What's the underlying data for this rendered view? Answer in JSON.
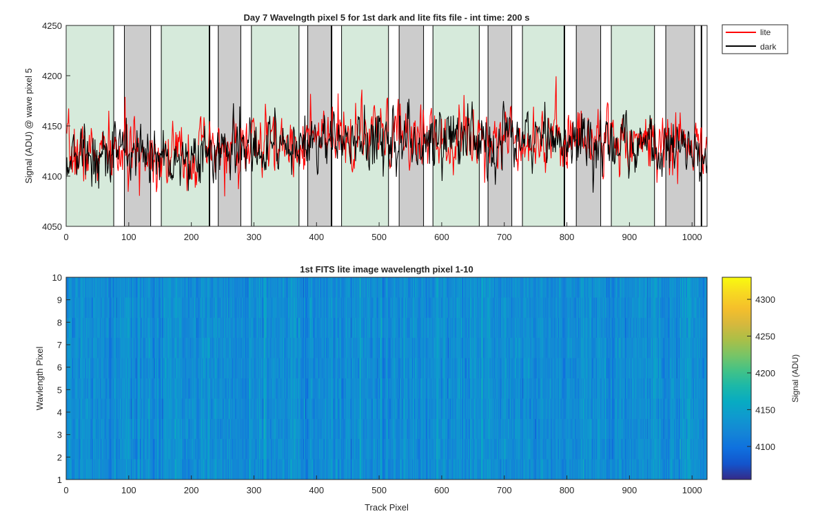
{
  "chart_data": [
    {
      "type": "line",
      "title": "Day 7 Wavelngth pixel 5 for 1st dark and lite fits file - int time: 200 s",
      "xlabel": "",
      "ylabel": "Signal (ADU) @ wave pixel 5",
      "xlim": [
        0,
        1024
      ],
      "ylim": [
        4050,
        4250
      ],
      "xticks": [
        0,
        100,
        200,
        300,
        400,
        500,
        600,
        700,
        800,
        900,
        1000
      ],
      "yticks": [
        4050,
        4100,
        4150,
        4200,
        4250
      ],
      "legend": {
        "position": "outside-top-right",
        "entries": [
          "lite",
          "dark"
        ]
      },
      "series": [
        {
          "name": "lite",
          "color": "#ff0000",
          "baseline": [
            [
              0,
              4122
            ],
            [
              100,
              4124
            ],
            [
              200,
              4121
            ],
            [
              300,
              4130
            ],
            [
              400,
              4135
            ],
            [
              500,
              4139
            ],
            [
              600,
              4141
            ],
            [
              700,
              4140
            ],
            [
              800,
              4139
            ],
            [
              900,
              4137
            ],
            [
              1000,
              4130
            ],
            [
              1024,
              4120
            ]
          ],
          "noise_std": 15,
          "n_points": 1024,
          "seed": 7
        },
        {
          "name": "dark",
          "color": "#000000",
          "baseline": [
            [
              0,
              4120
            ],
            [
              100,
              4122
            ],
            [
              200,
              4119
            ],
            [
              300,
              4128
            ],
            [
              400,
              4133
            ],
            [
              500,
              4136
            ],
            [
              600,
              4139
            ],
            [
              700,
              4137
            ],
            [
              800,
              4136
            ],
            [
              900,
              4134
            ],
            [
              1000,
              4128
            ],
            [
              1024,
              4118
            ]
          ],
          "noise_std": 14,
          "n_points": 1024,
          "seed": 13
        }
      ],
      "regions": [
        {
          "x": [
            0,
            76
          ],
          "color": "#d6eadb"
        },
        {
          "x": [
            93,
            135
          ],
          "color": "#cccccc"
        },
        {
          "x": [
            152,
            229
          ],
          "color": "#d6eadb"
        },
        {
          "x": [
            243,
            279
          ],
          "color": "#cccccc"
        },
        {
          "x": [
            296,
            372
          ],
          "color": "#d6eadb"
        },
        {
          "x": [
            386,
            424
          ],
          "color": "#cccccc"
        },
        {
          "x": [
            440,
            515
          ],
          "color": "#d6eadb"
        },
        {
          "x": [
            532,
            571
          ],
          "color": "#cccccc"
        },
        {
          "x": [
            586,
            660
          ],
          "color": "#d6eadb"
        },
        {
          "x": [
            674,
            712
          ],
          "color": "#cccccc"
        },
        {
          "x": [
            729,
            796
          ],
          "color": "#d6eadb"
        },
        {
          "x": [
            815,
            854
          ],
          "color": "#cccccc"
        },
        {
          "x": [
            871,
            940
          ],
          "color": "#d6eadb"
        },
        {
          "x": [
            958,
            1004
          ],
          "color": "#cccccc"
        }
      ],
      "boundaries": [
        229,
        424,
        796,
        1015
      ]
    },
    {
      "type": "heatmap",
      "title": "1st FITS lite image wavelength pixel 1-10",
      "xlabel": "Track Pixel",
      "ylabel": "Wavlength Pixel",
      "xlim": [
        0,
        1024
      ],
      "ylim": [
        1,
        10
      ],
      "xticks": [
        0,
        100,
        200,
        300,
        400,
        500,
        600,
        700,
        800,
        900,
        1000
      ],
      "yticks": [
        1,
        2,
        3,
        4,
        5,
        6,
        7,
        8,
        9,
        10
      ],
      "rows": 10,
      "columns": 1024,
      "value_mean": 4128,
      "value_std": 13,
      "seed": 21,
      "colorbar": {
        "label": "Signal (ADU)",
        "range": [
          4055,
          4330
        ],
        "ticks": [
          4100,
          4150,
          4200,
          4250,
          4300
        ],
        "colormap": "parula"
      }
    }
  ]
}
